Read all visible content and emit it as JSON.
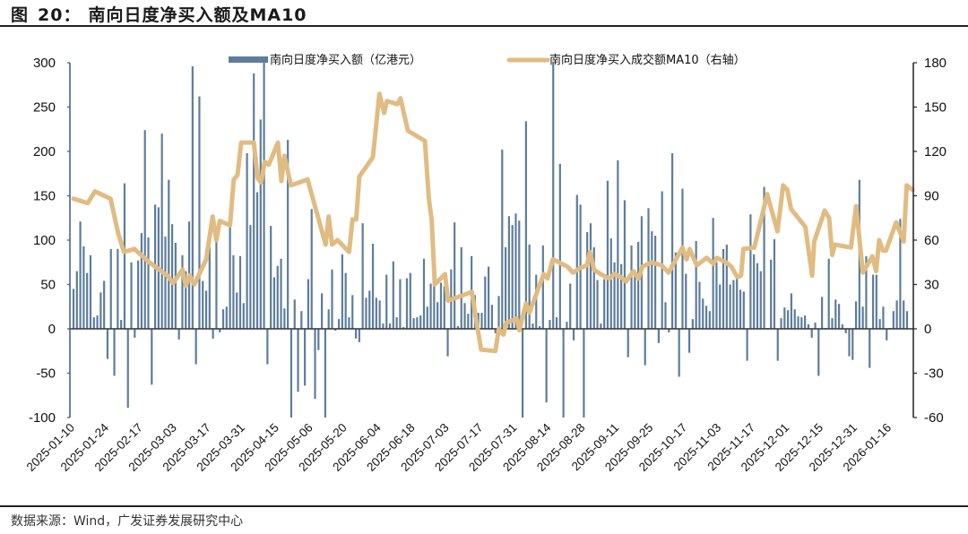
{
  "header": {
    "fig_label": "图",
    "fig_num": "20：",
    "title": "南向日度净买入额及MA10"
  },
  "footer": {
    "source": "数据来源：Wind，广发证券发展研究中心"
  },
  "colors": {
    "bar": "#5e7d9b",
    "line": "#e0bc82",
    "left_axis": "#3b5b8c",
    "right_axis": "#222222",
    "zero": "#333333"
  },
  "chart_data": {
    "type": "bar+line",
    "title": "南向日度净买入额及MA10",
    "legend": [
      {
        "label": "南向日度净买入额（亿港元）",
        "type": "bar"
      },
      {
        "label": "南向日度净买入成交额MA10（右轴）",
        "type": "line"
      }
    ],
    "legend_position": "top-center",
    "left_axis": {
      "min": -100,
      "max": 300,
      "ticks": [
        "300",
        "250",
        "200",
        "150",
        "100",
        "50",
        "0",
        "-50",
        "-100"
      ]
    },
    "right_axis": {
      "min": -60,
      "max": 180,
      "ticks": [
        "180",
        "150",
        "120",
        "90",
        "60",
        "30",
        "0",
        "-30",
        "-60"
      ]
    },
    "x_tick_every": 10,
    "x_labels": [
      "2025-01-10",
      "2025-01-24",
      "2025-02-17",
      "2025-03-03",
      "2025-03-17",
      "2025-03-31",
      "2025-04-15",
      "2025-05-06",
      "2025-05-20",
      "2025-06-04",
      "2025-06-18",
      "2025-07-03",
      "2025-07-17",
      "2025-07-31",
      "2025-08-14",
      "2025-08-28",
      "2025-09-11",
      "2025-09-25",
      "2025-10-17",
      "2025-11-03",
      "2025-11-17",
      "2025-12-01",
      "2025-12-15",
      "2025-12-31",
      "2026-01-16"
    ],
    "bars": [
      45,
      65,
      121,
      93,
      63,
      83,
      13,
      15,
      41,
      54,
      -34,
      90,
      -53,
      90,
      10,
      164,
      -89,
      75,
      -10,
      77,
      108,
      224,
      103,
      -63,
      140,
      137,
      220,
      104,
      168,
      118,
      97,
      -12,
      83,
      65,
      121,
      296,
      -40,
      262,
      54,
      43,
      92,
      -11,
      102,
      -4,
      22,
      25,
      115,
      83,
      41,
      82,
      29,
      198,
      117,
      288,
      154,
      236,
      300,
      -40,
      116,
      58,
      71,
      79,
      23,
      213,
      -100,
      33,
      -71,
      20,
      -64,
      56,
      135,
      -79,
      -24,
      40,
      -100,
      22,
      67,
      -2,
      11,
      84,
      63,
      13,
      38,
      -11,
      -15,
      119,
      35,
      43,
      96,
      35,
      32,
      6,
      61,
      6,
      76,
      13,
      56,
      2,
      57,
      63,
      12,
      13,
      15,
      79,
      25,
      51,
      48,
      30,
      52,
      48,
      -31,
      67,
      120,
      3,
      92,
      29,
      17,
      82,
      38,
      18,
      18,
      59,
      70,
      27,
      -5,
      37,
      202,
      92,
      127,
      117,
      130,
      122,
      -100,
      234,
      95,
      6,
      61,
      3,
      94,
      -83,
      10,
      300,
      13,
      186,
      -100,
      8,
      51,
      -13,
      151,
      140,
      -100,
      109,
      119,
      92,
      55,
      6,
      56,
      167,
      102,
      75,
      190,
      73,
      145,
      -32,
      94,
      65,
      98,
      127,
      -41,
      136,
      110,
      105,
      -16,
      155,
      30,
      -4,
      198,
      86,
      -54,
      158,
      62,
      -27,
      11,
      99,
      53,
      34,
      26,
      20,
      125,
      75,
      50,
      90,
      95,
      50,
      55,
      59,
      44,
      42,
      -36,
      129,
      84,
      74,
      65,
      160,
      1,
      78,
      101,
      -36,
      12,
      24,
      21,
      40,
      22,
      14,
      13,
      15,
      5,
      -10,
      7,
      -53,
      36,
      1,
      79,
      12,
      33,
      28,
      5,
      -5,
      -31,
      -35,
      31,
      168,
      25,
      82,
      -44,
      61,
      61,
      11,
      25,
      -13,
      1,
      20,
      32,
      124,
      32,
      20
    ],
    "ma10_points": [
      [
        0,
        88
      ],
      [
        4.2,
        85
      ],
      [
        6.3,
        93
      ],
      [
        10.9,
        88
      ],
      [
        13.1,
        65
      ],
      [
        14.8,
        52
      ],
      [
        17.9,
        54
      ],
      [
        22.3,
        45
      ],
      [
        27.6,
        36
      ],
      [
        29.3,
        31
      ],
      [
        32,
        40
      ],
      [
        33,
        29
      ],
      [
        34.2,
        36
      ],
      [
        35.5,
        30
      ],
      [
        39,
        47
      ],
      [
        40.9,
        76
      ],
      [
        42,
        60
      ],
      [
        43,
        73
      ],
      [
        46,
        70
      ],
      [
        47.1,
        101
      ],
      [
        48.2,
        104
      ],
      [
        49.3,
        126
      ],
      [
        53,
        126
      ],
      [
        54.1,
        102
      ],
      [
        55.1,
        99
      ],
      [
        56.2,
        113
      ],
      [
        57.4,
        111
      ],
      [
        60.1,
        126
      ],
      [
        61.1,
        100
      ],
      [
        62,
        117
      ],
      [
        63.9,
        97
      ],
      [
        68.8,
        101
      ],
      [
        74.1,
        57
      ],
      [
        75,
        76
      ],
      [
        76,
        57
      ],
      [
        77.6,
        60
      ],
      [
        81,
        52
      ],
      [
        82,
        74
      ],
      [
        83.1,
        74
      ],
      [
        84,
        103
      ],
      [
        88,
        116
      ],
      [
        89.9,
        159
      ],
      [
        91.3,
        146
      ],
      [
        92.1,
        154
      ],
      [
        95.2,
        152
      ],
      [
        96.1,
        156
      ],
      [
        98.3,
        134
      ],
      [
        103.3,
        127
      ],
      [
        104.4,
        89
      ],
      [
        105.3,
        73
      ],
      [
        106.2,
        30
      ],
      [
        109.2,
        37
      ],
      [
        110.1,
        19
      ],
      [
        117.1,
        25
      ],
      [
        118.2,
        8
      ],
      [
        119.8,
        -14
      ],
      [
        124,
        -15
      ],
      [
        125,
        0
      ],
      [
        126.4,
        -4
      ],
      [
        127.2,
        4
      ],
      [
        130.3,
        7
      ],
      [
        131,
        -1
      ],
      [
        133,
        17
      ],
      [
        134,
        11
      ],
      [
        138.2,
        37
      ],
      [
        139.3,
        34
      ],
      [
        140.9,
        47
      ],
      [
        145.2,
        42
      ],
      [
        146.8,
        38
      ],
      [
        148.8,
        41
      ],
      [
        150.9,
        43
      ],
      [
        151.8,
        52
      ],
      [
        153,
        40
      ],
      [
        154.9,
        37
      ],
      [
        157.5,
        34
      ],
      [
        158.9,
        37
      ],
      [
        161,
        35
      ],
      [
        162.4,
        32
      ],
      [
        164.6,
        39
      ],
      [
        166.1,
        34
      ],
      [
        167.2,
        42
      ],
      [
        169.8,
        45
      ],
      [
        172.9,
        43
      ],
      [
        174.9,
        38
      ],
      [
        179,
        55
      ],
      [
        180.2,
        47
      ],
      [
        181.1,
        54
      ],
      [
        183.2,
        43
      ],
      [
        186.1,
        48
      ],
      [
        188.1,
        44
      ],
      [
        189.1,
        48
      ],
      [
        191.8,
        45
      ],
      [
        193.4,
        42
      ],
      [
        195.1,
        35
      ],
      [
        196.2,
        36
      ],
      [
        196.9,
        54
      ],
      [
        200.1,
        55
      ],
      [
        203.9,
        91
      ],
      [
        206.9,
        66
      ],
      [
        208.6,
        97
      ],
      [
        209.8,
        94
      ],
      [
        210.9,
        81
      ],
      [
        215.1,
        69
      ],
      [
        217.1,
        36
      ],
      [
        217.7,
        59
      ],
      [
        220.8,
        80
      ],
      [
        222.1,
        75
      ],
      [
        223,
        50
      ],
      [
        223.8,
        57
      ],
      [
        228.5,
        55
      ],
      [
        230,
        83
      ],
      [
        232,
        38
      ],
      [
        234.8,
        49
      ],
      [
        235.9,
        39
      ],
      [
        236.8,
        60
      ],
      [
        237.9,
        53
      ],
      [
        238.8,
        53
      ],
      [
        241.8,
        72
      ],
      [
        244,
        59
      ],
      [
        244.9,
        97
      ],
      [
        246.6,
        94
      ]
    ]
  }
}
